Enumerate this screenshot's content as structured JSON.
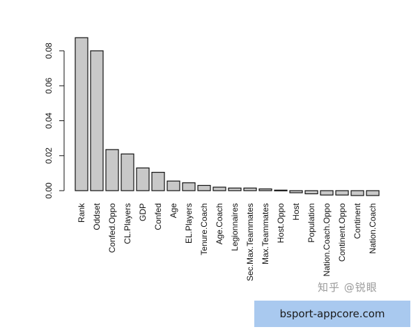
{
  "chart_data": {
    "type": "bar",
    "categories": [
      "Rank",
      "Oddset",
      "Confed.Oppo",
      "CL.Players",
      "GDP",
      "Confed",
      "Age",
      "EL.Players",
      "Tenure.Coach",
      "Age.Coach",
      "Legionnaires",
      "Sec.Max.Teammates",
      "Max.Teammates",
      "Host.Oppo",
      "Host",
      "Population",
      "Nation.Coach.Oppo",
      "Continent.Oppo",
      "Continent",
      "Nation.Coach"
    ],
    "values": [
      0.0875,
      0.08,
      0.0235,
      0.021,
      0.013,
      0.0105,
      0.0055,
      0.0045,
      0.003,
      0.002,
      0.0015,
      0.0015,
      0.001,
      0.0003,
      -0.0012,
      -0.0018,
      -0.0025,
      -0.0025,
      -0.0028,
      -0.0028
    ],
    "ylim": [
      -0.004,
      0.09
    ],
    "yticks": [
      "0.00",
      "0.02",
      "0.04",
      "0.06",
      "0.08"
    ],
    "bar_color": "#c8c8c8"
  },
  "watermark": "知乎 @锐眼",
  "banner": {
    "text": "bsport-appcore.com",
    "color": "#a9c9ef"
  }
}
